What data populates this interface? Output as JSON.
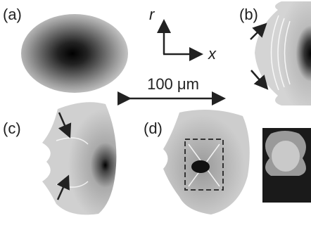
{
  "panels": [
    {
      "label": "(a)"
    },
    {
      "label": "(b)"
    },
    {
      "label": "(c)"
    },
    {
      "label": "(d)"
    }
  ],
  "axes": {
    "vertical": "r",
    "horizontal": "x"
  },
  "scale_bar": {
    "label": "100 μm"
  }
}
